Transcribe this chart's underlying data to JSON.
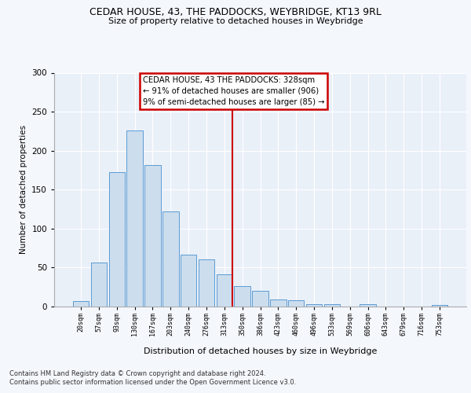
{
  "title": "CEDAR HOUSE, 43, THE PADDOCKS, WEYBRIDGE, KT13 9RL",
  "subtitle": "Size of property relative to detached houses in Weybridge",
  "xlabel": "Distribution of detached houses by size in Weybridge",
  "ylabel": "Number of detached properties",
  "categories": [
    "20sqm",
    "57sqm",
    "93sqm",
    "130sqm",
    "167sqm",
    "203sqm",
    "240sqm",
    "276sqm",
    "313sqm",
    "350sqm",
    "386sqm",
    "423sqm",
    "460sqm",
    "496sqm",
    "533sqm",
    "569sqm",
    "606sqm",
    "643sqm",
    "679sqm",
    "716sqm",
    "753sqm"
  ],
  "bar_heights": [
    7,
    56,
    172,
    226,
    182,
    122,
    67,
    61,
    41,
    26,
    20,
    9,
    8,
    3,
    3,
    0,
    3,
    0,
    0,
    0,
    2
  ],
  "bar_color": "#ccdded",
  "bar_edge_color": "#5b9bd5",
  "vline_color": "#cc0000",
  "annotation_text": "CEDAR HOUSE, 43 THE PADDOCKS: 328sqm\n← 91% of detached houses are smaller (906)\n9% of semi-detached houses are larger (85) →",
  "annotation_box_color": "#cc0000",
  "ylim": [
    0,
    300
  ],
  "yticks": [
    0,
    50,
    100,
    150,
    200,
    250,
    300
  ],
  "footer_line1": "Contains HM Land Registry data © Crown copyright and database right 2024.",
  "footer_line2": "Contains public sector information licensed under the Open Government Licence v3.0.",
  "background_color": "#eaf0f8",
  "fig_facecolor": "#f4f7fc",
  "grid_color": "#ffffff"
}
